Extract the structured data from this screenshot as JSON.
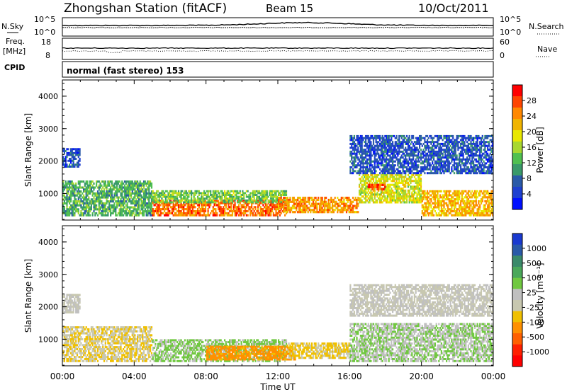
{
  "header": {
    "title": "Zhongshan Station (fitACF)",
    "beam": "Beam 15",
    "date": "10/Oct/2011"
  },
  "strips": {
    "nsky_label": "N.Sky",
    "nsky_top": "10^5",
    "nsky_bottom": "10^0",
    "nsearch_label": "N.Search",
    "nsearch_top": "10^5",
    "nsearch_bottom": "10^0",
    "freq_label": "Freq.",
    "freq_unit": "[MHz]",
    "freq_top": "18",
    "freq_bottom": "8",
    "nave_label": "Nave",
    "nave_top": "60",
    "nave_bottom": "0",
    "cpid_label": "CPID",
    "cpid_value": "normal (fast stereo) 153"
  },
  "colorbars": {
    "power": {
      "label": "Power [dB]",
      "ticks": [
        "28",
        "24",
        "20",
        "16",
        "12",
        "8",
        "4"
      ],
      "colors": [
        "#ff0000",
        "#ff4400",
        "#ff8800",
        "#f0b400",
        "#e8e800",
        "#a8d830",
        "#50c050",
        "#3a9a6a",
        "#2a5aa8",
        "#1e40d0",
        "#0010ff"
      ]
    },
    "velocity": {
      "label": "Velocity [m s⁻¹]",
      "ticks": [
        "1000",
        "500",
        "100",
        "25",
        "-25",
        "-100",
        "-500",
        "-1000"
      ],
      "colors": [
        "#1a3ad0",
        "#2a5aa8",
        "#3a8a6a",
        "#4aa85a",
        "#70c840",
        "#c0c0c0",
        "#c8c8b0",
        "#f0c000",
        "#ff9000",
        "#ff6000",
        "#ff2000",
        "#ff0000"
      ]
    }
  },
  "chart_data": [
    {
      "type": "heatmap",
      "title": "Power",
      "xlabel": "Time UT",
      "ylabel": "Slant Range [km]",
      "x_ticks": [
        "00:00",
        "04:00",
        "08:00",
        "12:00",
        "16:00",
        "20:00",
        "00:00"
      ],
      "xlim_hours": [
        0,
        24
      ],
      "y_ticks": [
        1000,
        2000,
        3000,
        4000
      ],
      "ylim": [
        180,
        4500
      ],
      "colorbar": "Power [dB]",
      "colorbar_range": [
        0,
        32
      ],
      "regions": [
        {
          "t0": 0.0,
          "t1": 5.0,
          "r0": 300,
          "r1": 1400,
          "value": 12
        },
        {
          "t0": 0.0,
          "t1": 1.0,
          "r0": 1800,
          "r1": 2400,
          "value": 6
        },
        {
          "t0": 5.0,
          "t1": 12.5,
          "r0": 300,
          "r1": 800,
          "value": 26
        },
        {
          "t0": 5.0,
          "t1": 12.5,
          "r0": 700,
          "r1": 1100,
          "value": 14
        },
        {
          "t0": 12.0,
          "t1": 16.5,
          "r0": 400,
          "r1": 900,
          "value": 24
        },
        {
          "t0": 16.5,
          "t1": 20.0,
          "r0": 700,
          "r1": 1600,
          "value": 18
        },
        {
          "t0": 17.0,
          "t1": 18.0,
          "r0": 1100,
          "r1": 1300,
          "value": 28
        },
        {
          "t0": 20.0,
          "t1": 24.0,
          "r0": 300,
          "r1": 1100,
          "value": 22
        },
        {
          "t0": 16.0,
          "t1": 24.0,
          "r0": 1600,
          "r1": 2800,
          "value": 6
        }
      ]
    },
    {
      "type": "heatmap",
      "title": "Velocity",
      "xlabel": "Time UT",
      "ylabel": "Slant Range [km]",
      "x_ticks": [
        "00:00",
        "04:00",
        "08:00",
        "12:00",
        "16:00",
        "20:00",
        "00:00"
      ],
      "xlim_hours": [
        0,
        24
      ],
      "y_ticks": [
        1000,
        2000,
        3000,
        4000
      ],
      "ylim": [
        180,
        4500
      ],
      "colorbar": "Velocity [m s-1]",
      "colorbar_range": [
        -1000,
        1000
      ],
      "regions": [
        {
          "t0": 0.0,
          "t1": 5.0,
          "r0": 300,
          "r1": 1400,
          "value": -150
        },
        {
          "t0": 0.0,
          "t1": 1.0,
          "r0": 1800,
          "r1": 2400,
          "value": 0
        },
        {
          "t0": 5.0,
          "t1": 12.5,
          "r0": 300,
          "r1": 1000,
          "value": 200
        },
        {
          "t0": 8.0,
          "t1": 13.0,
          "r0": 350,
          "r1": 800,
          "value": -400
        },
        {
          "t0": 12.5,
          "t1": 16.0,
          "r0": 400,
          "r1": 900,
          "value": -200
        },
        {
          "t0": 16.0,
          "t1": 24.0,
          "r0": 300,
          "r1": 1500,
          "value": 150
        },
        {
          "t0": 16.0,
          "t1": 24.0,
          "r0": 1700,
          "r1": 2700,
          "value": 0
        }
      ]
    }
  ]
}
